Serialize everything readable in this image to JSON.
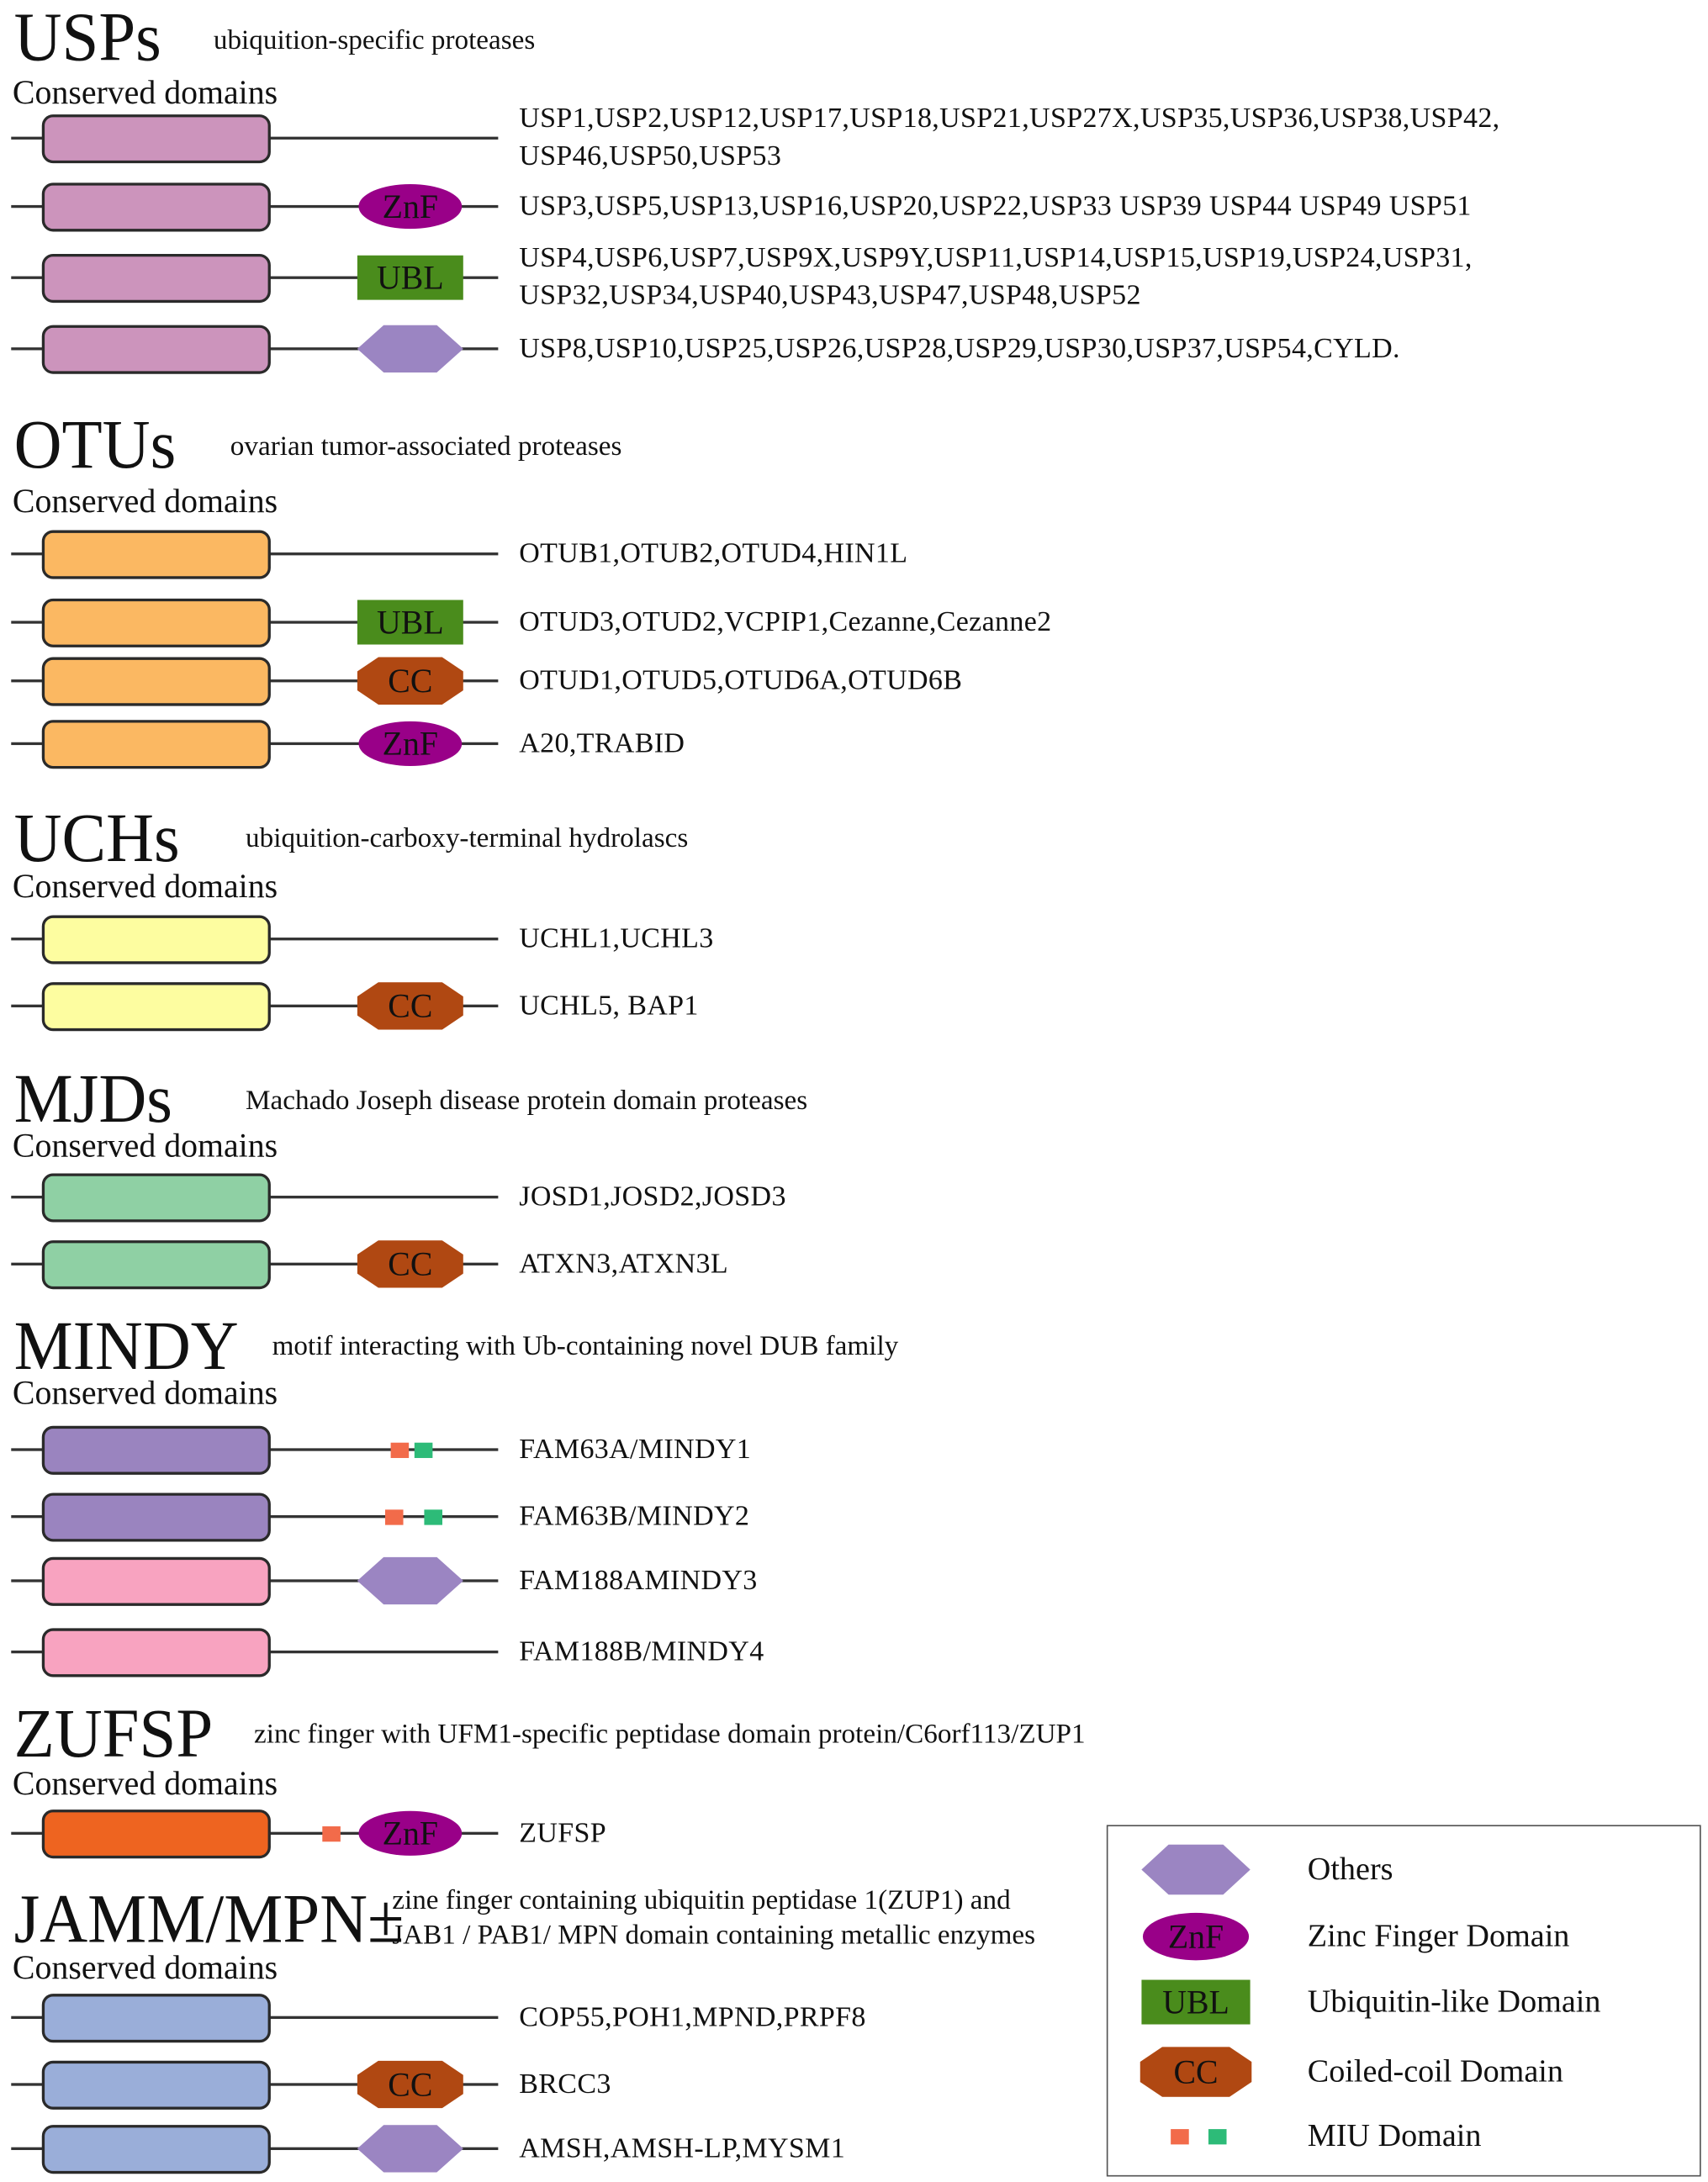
{
  "colors": {
    "usp": "#cc94bc",
    "otu": "#fbb862",
    "uch": "#fdfda0",
    "mjd": "#8fd0a4",
    "mindy_purple": "#9a84bf",
    "mindy_pink": "#f8a3c0",
    "zufsp": "#ee6420",
    "jamm": "#9aaed9",
    "znf": "#990088",
    "ubl": "#4a8c1c",
    "cc": "#b04812",
    "others": "#9b85c2",
    "miu_orange": "#f26b4a",
    "miu_green": "#2dbb78"
  },
  "families": [
    {
      "title": "USPs",
      "subtitle": [
        "ubiquition-specific proteases"
      ],
      "conserved": "Conserved domains",
      "rows": [
        {
          "box": "usp",
          "domain": "none",
          "miu": "none",
          "genes": [
            "USP1,USP2,USP12,USP17,USP18,USP21,USP27X,USP35,USP36,USP38,USP42,",
            "USP46,USP50,USP53"
          ]
        },
        {
          "box": "usp",
          "domain": "znf",
          "miu": "none",
          "genes": [
            "USP3,USP5,USP13,USP16,USP20,USP22,USP33 USP39 USP44 USP49 USP51"
          ]
        },
        {
          "box": "usp",
          "domain": "ubl",
          "miu": "none",
          "genes": [
            "USP4,USP6,USP7,USP9X,USP9Y,USP11,USP14,USP15,USP19,USP24,USP31,",
            "USP32,USP34,USP40,USP43,USP47,USP48,USP52"
          ]
        },
        {
          "box": "usp",
          "domain": "others",
          "miu": "none",
          "genes": [
            "USP8,USP10,USP25,USP26,USP28,USP29,USP30,USP37,USP54,CYLD."
          ]
        }
      ]
    },
    {
      "title": "OTUs",
      "subtitle": [
        "ovarian tumor-associated proteases"
      ],
      "conserved": "Conserved domains",
      "rows": [
        {
          "box": "otu",
          "domain": "none",
          "miu": "none",
          "genes": [
            "OTUB1,OTUB2,OTUD4,HIN1L"
          ]
        },
        {
          "box": "otu",
          "domain": "ubl",
          "miu": "none",
          "genes": [
            "OTUD3,OTUD2,VCPIP1,Cezanne,Cezanne2"
          ]
        },
        {
          "box": "otu",
          "domain": "cc",
          "miu": "none",
          "genes": [
            "OTUD1,OTUD5,OTUD6A,OTUD6B"
          ]
        },
        {
          "box": "otu",
          "domain": "znf",
          "miu": "none",
          "genes": [
            "A20,TRABID"
          ]
        }
      ]
    },
    {
      "title": "UCHs",
      "subtitle": [
        "ubiquition-carboxy-terminal hydrolascs"
      ],
      "conserved": "Conserved domains",
      "rows": [
        {
          "box": "uch",
          "domain": "none",
          "miu": "none",
          "genes": [
            "UCHL1,UCHL3"
          ]
        },
        {
          "box": "uch",
          "domain": "cc",
          "miu": "none",
          "genes": [
            "UCHL5, BAP1"
          ]
        }
      ]
    },
    {
      "title": "MJDs",
      "subtitle": [
        "Machado Joseph disease protein domain proteases"
      ],
      "conserved": "Conserved domains",
      "rows": [
        {
          "box": "mjd",
          "domain": "none",
          "miu": "none",
          "genes": [
            "JOSD1,JOSD2,JOSD3"
          ]
        },
        {
          "box": "mjd",
          "domain": "cc",
          "miu": "none",
          "genes": [
            "ATXN3,ATXN3L"
          ]
        }
      ]
    },
    {
      "title": "MINDY",
      "subtitle": [
        "motif interacting with Ub-containing novel DUB family"
      ],
      "conserved": "Conserved domains",
      "rows": [
        {
          "box": "mindy_purple",
          "domain": "none",
          "miu": "adjacent",
          "genes": [
            "FAM63A/MINDY1"
          ]
        },
        {
          "box": "mindy_purple",
          "domain": "none",
          "miu": "spaced",
          "genes": [
            "FAM63B/MINDY2"
          ]
        },
        {
          "box": "mindy_pink",
          "domain": "others",
          "miu": "none",
          "genes": [
            "FAM188AMINDY3"
          ]
        },
        {
          "box": "mindy_pink",
          "domain": "none",
          "miu": "none",
          "genes": [
            "FAM188B/MINDY4"
          ]
        }
      ]
    },
    {
      "title": "ZUFSP",
      "subtitle": [
        "zinc finger with UFM1-specific peptidase domain protein/C6orf113/ZUP1"
      ],
      "conserved": "Conserved domains",
      "rows": [
        {
          "box": "zufsp",
          "domain": "znf",
          "miu": "orange-only",
          "genes": [
            "ZUFSP"
          ]
        }
      ]
    },
    {
      "title": "JAMM/MPN±",
      "subtitle": [
        "zine finger containing ubiquitin peptidase 1(ZUP1) and",
        "JAB1 / PAB1/ MPN domain containing metallic enzymes"
      ],
      "conserved": "Conserved domains",
      "rows": [
        {
          "box": "jamm",
          "domain": "none",
          "miu": "none",
          "genes": [
            "COP55,POH1,MPND,PRPF8"
          ]
        },
        {
          "box": "jamm",
          "domain": "cc",
          "miu": "none",
          "genes": [
            "BRCC3"
          ]
        },
        {
          "box": "jamm",
          "domain": "others",
          "miu": "none",
          "genes": [
            "AMSH,AMSH-LP,MYSM1"
          ]
        }
      ]
    }
  ],
  "domain_labels": {
    "znf": "ZnF",
    "ubl": "UBL",
    "cc": "CC"
  },
  "legend": [
    {
      "shape": "others",
      "label": "Others"
    },
    {
      "shape": "znf",
      "label": "Zinc Finger Domain"
    },
    {
      "shape": "ubl",
      "label": "Ubiquitin-like Domain"
    },
    {
      "shape": "cc",
      "label": "Coiled-coil Domain"
    },
    {
      "shape": "miu",
      "label": "MIU Domain"
    }
  ]
}
